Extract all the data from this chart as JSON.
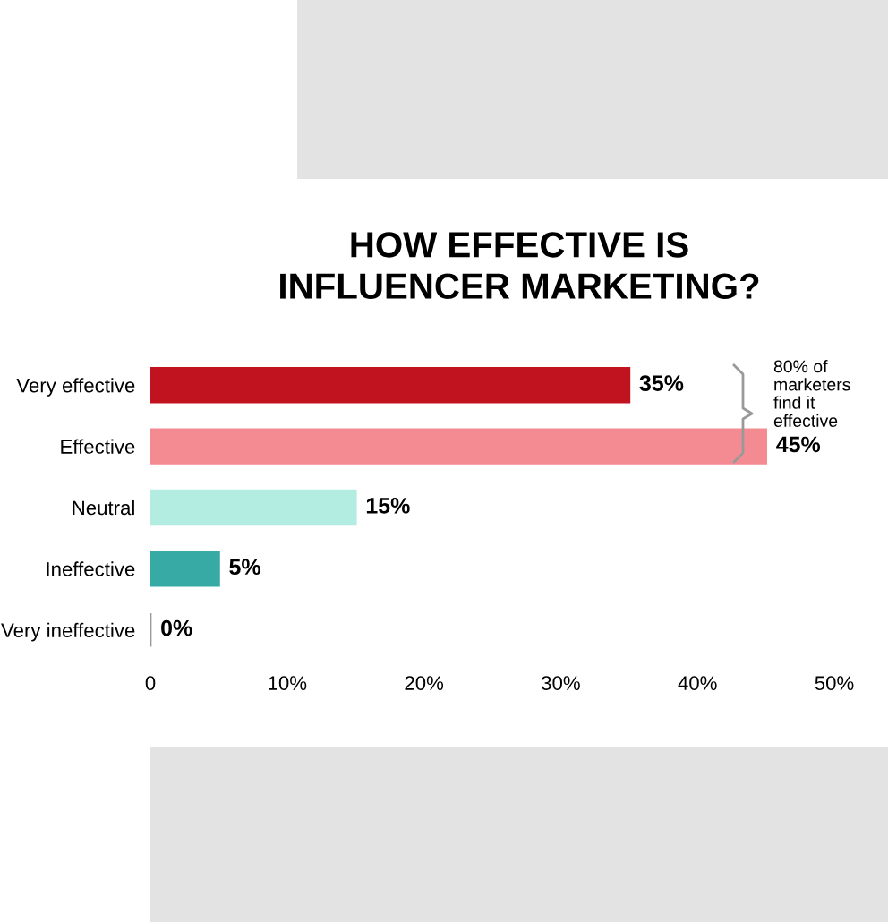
{
  "chart_data": {
    "type": "bar",
    "orientation": "horizontal",
    "title": "HOW EFFECTIVE IS\nINFLUENCER MARKETING?",
    "categories": [
      "Very effective",
      "Effective",
      "Neutral",
      "Ineffective",
      "Very ineffective"
    ],
    "values": [
      35,
      45,
      15,
      5,
      0
    ],
    "colors": [
      "#c1121f",
      "#f48b93",
      "#b3ede1",
      "#37aaa6",
      "#9a9a9a"
    ],
    "value_labels": [
      "35%",
      "45%",
      "15%",
      "5%",
      "0%"
    ],
    "xlim": [
      0,
      50
    ],
    "xticks": [
      {
        "value": 0,
        "label": "0"
      },
      {
        "value": 10,
        "label": "10%"
      },
      {
        "value": 20,
        "label": "20%"
      },
      {
        "value": 30,
        "label": "30%"
      },
      {
        "value": 40,
        "label": "40%"
      },
      {
        "value": 50,
        "label": "50%"
      }
    ],
    "grid": false,
    "legend": false,
    "annotations": [
      "80% of\nmarketers\nfind it\neffective"
    ]
  }
}
